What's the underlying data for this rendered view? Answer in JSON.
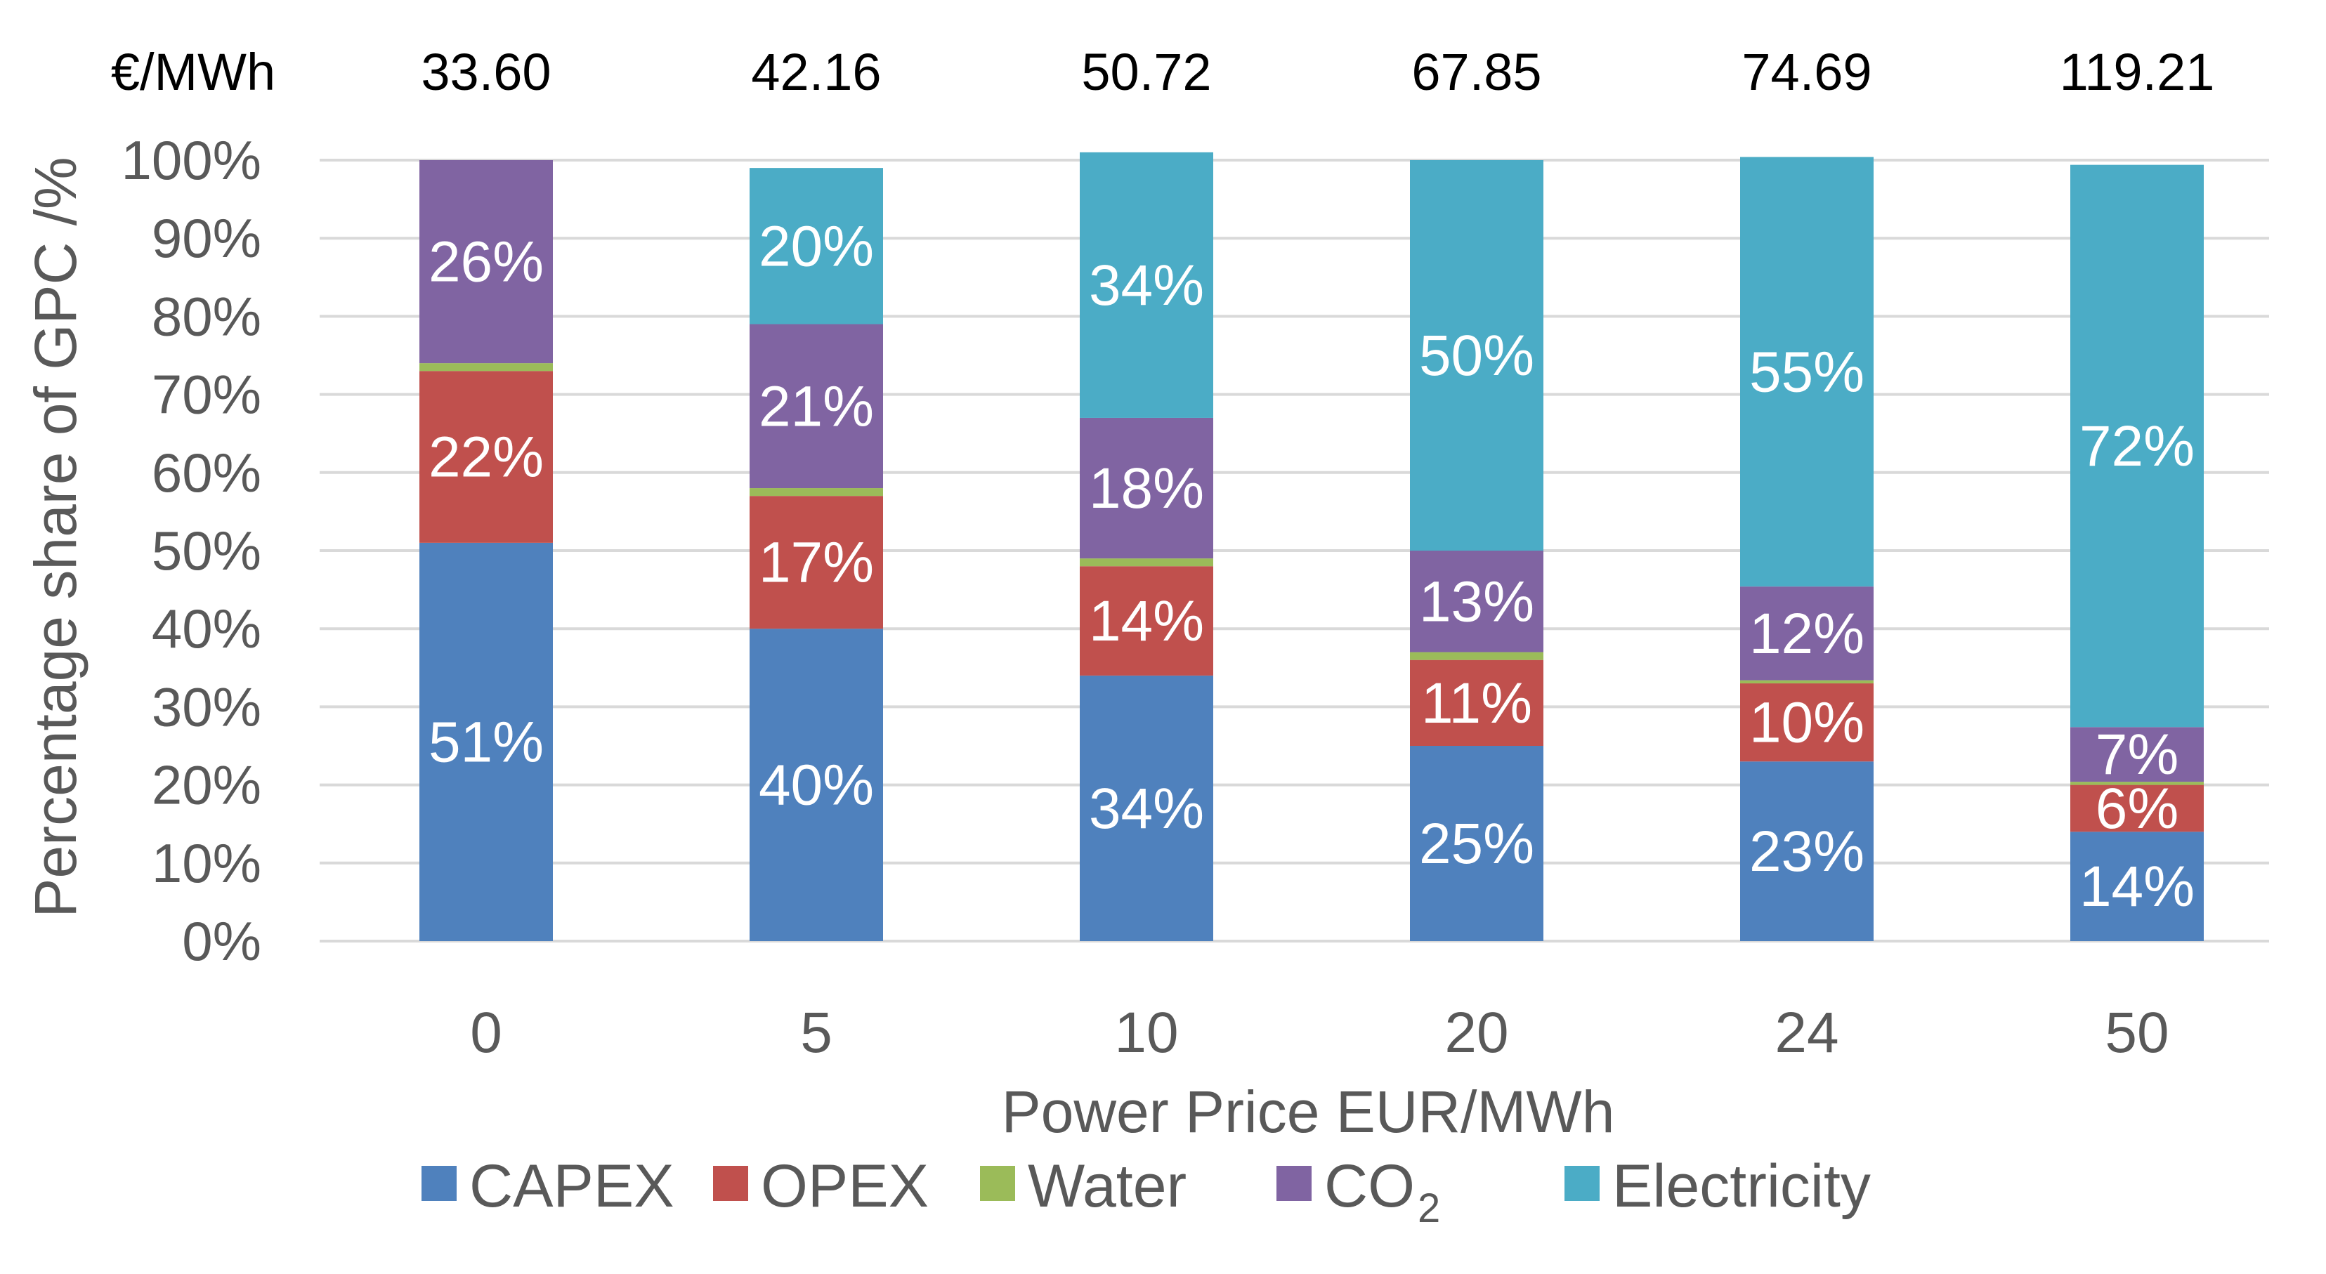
{
  "chart_data": {
    "type": "bar",
    "stacked": true,
    "percent": true,
    "title": "",
    "gpc_header": "€/MWh",
    "gpc_values": [
      "33.60",
      "42.16",
      "50.72",
      "67.85",
      "74.69",
      "119.21"
    ],
    "xlabel": "Power Price EUR/MWh",
    "ylabel": "Percentage share of GPC /%",
    "categories": [
      "0",
      "5",
      "10",
      "20",
      "24",
      "50"
    ],
    "ylim": [
      0,
      100
    ],
    "yticks": [
      "0%",
      "10%",
      "20%",
      "30%",
      "40%",
      "50%",
      "60%",
      "70%",
      "80%",
      "90%",
      "100%"
    ],
    "grid": true,
    "legend_position": "bottom",
    "series": [
      {
        "name": "CAPEX",
        "color": "#4F81BD",
        "values": [
          51,
          40,
          34,
          25,
          23,
          14
        ],
        "labels": [
          "51%",
          "40%",
          "34%",
          "25%",
          "23%",
          "14%"
        ]
      },
      {
        "name": "OPEX",
        "color": "#C0504D",
        "values": [
          22,
          17,
          14,
          11,
          10,
          6
        ],
        "labels": [
          "22%",
          "17%",
          "14%",
          "11%",
          "10%",
          "6%"
        ]
      },
      {
        "name": "Water",
        "color": "#9BBB59",
        "values": [
          1,
          1,
          1,
          1,
          0.4,
          0.4
        ],
        "labels": [
          "",
          "",
          "",
          "",
          "",
          ""
        ]
      },
      {
        "name": "CO",
        "name_subscript": "2",
        "color": "#8064A2",
        "values": [
          26,
          21,
          18,
          13,
          12,
          7
        ],
        "labels": [
          "26%",
          "21%",
          "18%",
          "13%",
          "12%",
          "7%"
        ]
      },
      {
        "name": "Electricity",
        "color": "#4BACC6",
        "values": [
          0,
          20,
          34,
          50,
          55,
          72
        ],
        "labels": [
          "",
          "20%",
          "34%",
          "50%",
          "55%",
          "72%"
        ]
      }
    ]
  }
}
